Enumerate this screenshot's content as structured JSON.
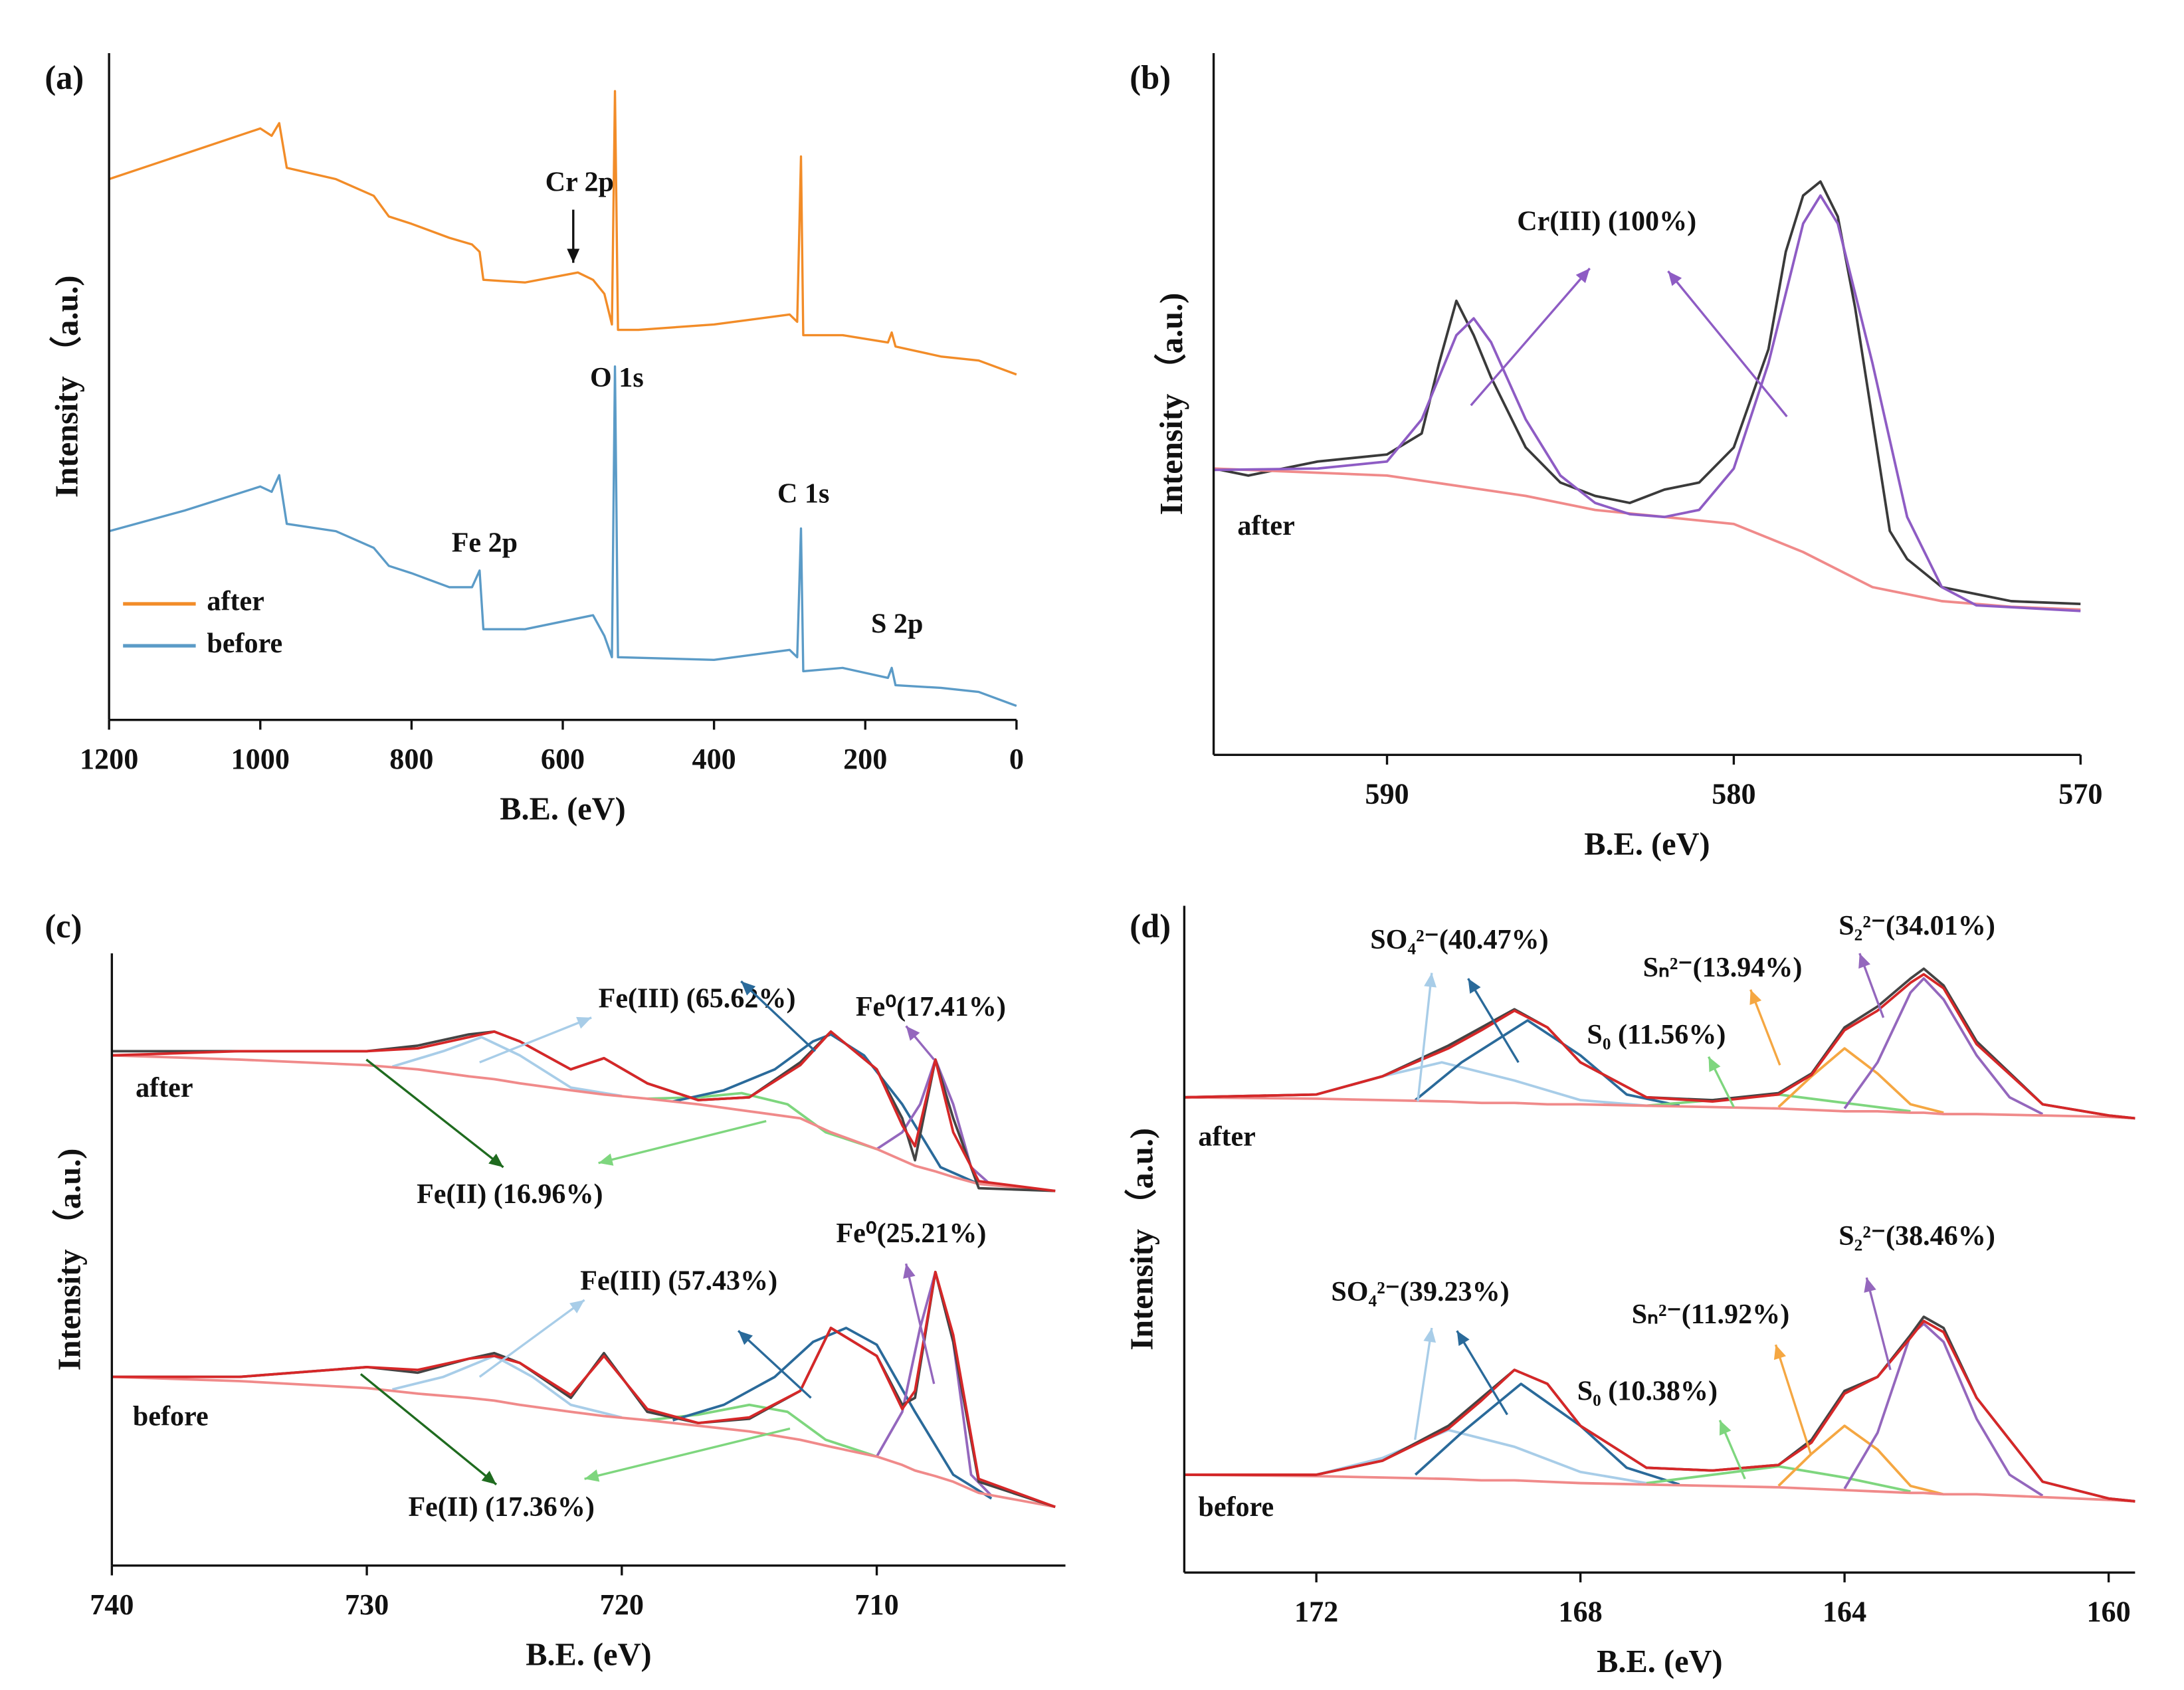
{
  "chart_data": [
    {
      "type": "line",
      "title": "(a)",
      "xlabel": "B.E. (eV)",
      "ylabel": "Intensity （a.u.)",
      "xlim": [
        1200,
        0
      ],
      "xticks": [
        1200,
        1000,
        800,
        600,
        400,
        200,
        0
      ],
      "ylim": [
        0,
        100
      ],
      "legend": "lower left",
      "series": [
        {
          "name": "after",
          "color": "#f28c28",
          "x": [
            1200,
            1100,
            1000,
            985,
            975,
            965,
            900,
            850,
            830,
            800,
            750,
            720,
            710,
            705,
            650,
            580,
            560,
            545,
            535,
            531,
            527,
            500,
            400,
            300,
            290,
            285,
            282,
            230,
            170,
            165,
            160,
            100,
            50,
            0
          ],
          "values": [
            81.1,
            84.9,
            88.7,
            87.6,
            89.5,
            82.8,
            81.1,
            78.6,
            75.5,
            74.4,
            72.3,
            71.3,
            70.2,
            66.0,
            65.6,
            67.1,
            66.0,
            63.9,
            59.3,
            94.3,
            58.5,
            58.5,
            59.3,
            60.8,
            59.7,
            84.5,
            57.7,
            57.7,
            56.6,
            58.1,
            56.0,
            54.5,
            53.9,
            51.8
          ]
        },
        {
          "name": "before",
          "color": "#5b9bc7",
          "x": [
            1200,
            1100,
            1000,
            985,
            975,
            965,
            900,
            850,
            830,
            800,
            750,
            720,
            710,
            705,
            650,
            560,
            545,
            535,
            531,
            527,
            400,
            300,
            290,
            285,
            282,
            230,
            170,
            165,
            160,
            100,
            50,
            0
          ],
          "values": [
            28.3,
            31.4,
            35.0,
            34.2,
            36.7,
            29.4,
            28.3,
            25.8,
            23.1,
            22.0,
            19.9,
            19.9,
            22.4,
            13.6,
            13.6,
            15.7,
            12.6,
            9.4,
            53.0,
            9.4,
            9.0,
            10.5,
            9.4,
            28.7,
            7.3,
            7.8,
            6.3,
            7.8,
            5.2,
            4.8,
            4.2,
            2.1
          ]
        }
      ],
      "annotations": [
        "Cr 2p",
        "O 1s",
        "Fe 2p",
        "C 1s",
        "S 2p"
      ]
    },
    {
      "type": "line",
      "title": "(b)",
      "xlabel": "B.E. (eV)",
      "ylabel": "Intensity （a.u.)",
      "xlim": [
        595,
        570
      ],
      "xticks": [
        590,
        580,
        570
      ],
      "ylim": [
        0,
        100
      ],
      "series": [
        {
          "color": "#3a3a3a",
          "x": [
            595,
            594,
            592,
            590,
            589,
            588.5,
            588,
            587.5,
            587,
            586,
            585,
            584,
            583,
            582,
            581,
            580,
            579,
            578.5,
            578,
            577.5,
            577,
            576.5,
            576,
            575.5,
            575,
            574,
            573,
            572,
            570
          ],
          "values": [
            40.8,
            39.8,
            41.8,
            42.8,
            45.8,
            55.8,
            64.7,
            59.8,
            53.8,
            43.8,
            38.8,
            36.9,
            35.9,
            37.8,
            38.8,
            43.8,
            57.8,
            71.7,
            79.7,
            81.7,
            76.7,
            63.7,
            47.8,
            31.9,
            27.9,
            23.9,
            22.9,
            21.9,
            21.5
          ]
        },
        {
          "color": "#f08a8a",
          "x": [
            595,
            590,
            586,
            584,
            582,
            580,
            578,
            576,
            574,
            572,
            570
          ],
          "values": [
            40.8,
            39.8,
            36.9,
            34.9,
            33.9,
            32.9,
            28.9,
            23.9,
            21.9,
            21.1,
            20.7
          ]
        },
        {
          "color": "#8e5cc4",
          "x": [
            595,
            592,
            590,
            589,
            588,
            587.5,
            587,
            586,
            585,
            584,
            583,
            582,
            581,
            580,
            579,
            578,
            577.5,
            577,
            576,
            575,
            574,
            573,
            570
          ],
          "values": [
            40.6,
            40.8,
            41.8,
            47.8,
            59.8,
            62.2,
            58.8,
            47.8,
            39.8,
            35.9,
            34.3,
            33.9,
            34.9,
            40.8,
            55.8,
            75.7,
            79.7,
            75.7,
            55.8,
            33.9,
            23.9,
            21.3,
            20.5
          ]
        }
      ],
      "annotations": [
        "Cr(III) (100%)",
        "after"
      ]
    },
    {
      "type": "line",
      "title": "(c)",
      "xlabel": "B.E. (eV)",
      "ylabel": "Intensity （a.u.)",
      "xlim": [
        740,
        702.6
      ],
      "xticks": [
        740,
        730,
        720,
        710
      ],
      "ylim": [
        0,
        438
      ],
      "x": [
        740,
        735,
        730,
        728,
        726,
        725,
        724,
        722,
        720.7,
        719,
        717,
        715,
        713,
        711.8,
        710,
        709,
        708.5,
        707.7,
        707,
        706,
        703
      ],
      "series": [
        {
          "color": "#a8cde8",
          "x": [
            729,
            727,
            725.5,
            724,
            722,
            720
          ],
          "values": [
            357,
            368,
            378,
            365,
            342,
            336
          ]
        },
        {
          "color": "#7ed67e",
          "x": [
            719,
            717,
            715.3,
            713.5,
            712,
            710
          ],
          "values": [
            334,
            335,
            338,
            330,
            310,
            298
          ]
        },
        {
          "color": "#2a6a9a",
          "x": [
            718,
            716,
            714,
            712.5,
            711.8,
            710.5,
            709,
            707.5,
            706
          ],
          "values": [
            332,
            340,
            355,
            375,
            380,
            365,
            330,
            285,
            273
          ]
        },
        {
          "color": "#9467bd",
          "x": [
            710,
            709,
            708.3,
            707.7,
            707,
            706.3,
            705.5
          ],
          "values": [
            298,
            310,
            330,
            362,
            330,
            285,
            272
          ]
        },
        {
          "color": "#f08a8a",
          "values": [
            365,
            362,
            358,
            355,
            350,
            348,
            345,
            340,
            337,
            334,
            330,
            325,
            320,
            310,
            298,
            290,
            286,
            282,
            278,
            273,
            268
          ]
        },
        {
          "color": "#444444",
          "values": [
            368,
            368,
            368,
            372,
            380,
            382,
            375,
            355,
            363,
            345,
            333,
            335,
            360,
            382,
            355,
            320,
            290,
            362,
            320,
            270,
            268
          ]
        },
        {
          "color": "#d62728",
          "values": [
            365,
            368,
            368,
            370,
            378,
            382,
            375,
            355,
            363,
            345,
            333,
            335,
            358,
            382,
            355,
            315,
            300,
            362,
            310,
            275,
            268
          ]
        },
        {
          "color": "#a8cde8",
          "x": [
            729,
            727,
            725,
            723.5,
            722,
            720
          ],
          "values": [
            126,
            135,
            150,
            135,
            115,
            106
          ]
        },
        {
          "color": "#7ed67e",
          "x": [
            719,
            717,
            715,
            713.5,
            712,
            710
          ],
          "values": [
            104,
            108,
            115,
            110,
            90,
            78
          ]
        },
        {
          "color": "#2a6a9a",
          "x": [
            718,
            716,
            714,
            712.5,
            711.2,
            710,
            708.5,
            707,
            705.5
          ],
          "values": [
            104,
            115,
            135,
            160,
            170,
            158,
            110,
            65,
            48
          ]
        },
        {
          "color": "#9467bd",
          "x": [
            710,
            709,
            708.3,
            707.7,
            707,
            706.3,
            705.5
          ],
          "values": [
            78,
            110,
            170,
            210,
            160,
            65,
            50
          ]
        },
        {
          "color": "#f08a8a",
          "values": [
            135,
            132,
            127,
            123,
            120,
            118,
            115,
            110,
            107,
            104,
            100,
            96,
            90,
            85,
            78,
            72,
            68,
            64,
            60,
            52,
            42
          ]
        },
        {
          "color": "#444444",
          "values": [
            135,
            135,
            142,
            138,
            148,
            152,
            145,
            120,
            152,
            110,
            102,
            105,
            125,
            170,
            150,
            115,
            120,
            210,
            160,
            60,
            42
          ]
        },
        {
          "color": "#d62728",
          "values": [
            135,
            135,
            142,
            140,
            148,
            150,
            145,
            122,
            150,
            112,
            102,
            106,
            125,
            170,
            150,
            112,
            125,
            210,
            165,
            62,
            42
          ]
        }
      ],
      "annotations": [
        "Fe(III) (65.62%)",
        "Fe⁰(17.41%)",
        "Fe(II) (16.96%)",
        "after",
        "Fe(III) (57.43%)",
        "Fe⁰(25.21%)",
        "Fe(II) (17.36%)",
        "before"
      ]
    },
    {
      "type": "line",
      "title": "(d)",
      "xlabel": "B.E. (eV)",
      "ylabel": "Intensity （a.u.)",
      "xlim": [
        174,
        159.6
      ],
      "xticks": [
        172,
        168,
        164,
        160
      ],
      "ylim": [
        0,
        477
      ],
      "x": [
        174,
        172,
        171,
        170,
        169.5,
        169,
        168.5,
        168,
        167,
        166,
        165,
        164.5,
        164,
        163.5,
        163,
        162.8,
        162.5,
        162,
        161,
        160,
        159.6
      ],
      "series": [
        {
          "color": "#a8cde8",
          "x": [
            172,
            171,
            170.1,
            169,
            168,
            167
          ],
          "values": [
            342,
            355,
            365,
            352,
            338,
            334
          ]
        },
        {
          "color": "#2a6a9a",
          "x": [
            170.5,
            169.8,
            168.8,
            168,
            167.3,
            166.5
          ],
          "values": [
            338,
            365,
            395,
            370,
            342,
            334
          ]
        },
        {
          "color": "#7ed67e",
          "x": [
            167,
            166,
            165,
            164,
            163
          ],
          "values": [
            334,
            338,
            342,
            336,
            330
          ]
        },
        {
          "color": "#f5a742",
          "x": [
            165,
            164.5,
            164,
            163.5,
            163,
            162.5
          ],
          "values": [
            333,
            355,
            375,
            357,
            335,
            329
          ]
        },
        {
          "color": "#9467bd",
          "x": [
            164,
            163.5,
            163,
            162.8,
            162.5,
            162,
            161.5,
            161
          ],
          "values": [
            332,
            365,
            415,
            425,
            410,
            370,
            340,
            328
          ]
        },
        {
          "color": "#f08a8a",
          "values": [
            340,
            339,
            338,
            337,
            336,
            336,
            335,
            335,
            334,
            333,
            332,
            331,
            330,
            330,
            329,
            329,
            328,
            328,
            327,
            326,
            325
          ]
        },
        {
          "color": "#444444",
          "values": [
            340,
            342,
            355,
            377,
            390,
            403,
            390,
            365,
            340,
            338,
            343,
            357,
            390,
            405,
            425,
            432,
            420,
            380,
            335,
            327,
            325
          ]
        },
        {
          "color": "#d62728",
          "values": [
            340,
            342,
            355,
            375,
            388,
            402,
            390,
            365,
            340,
            337,
            342,
            356,
            388,
            402,
            422,
            428,
            418,
            378,
            335,
            327,
            325
          ]
        },
        {
          "color": "#a8cde8",
          "x": [
            172,
            171,
            170,
            169,
            168,
            167
          ],
          "values": [
            70,
            82,
            102,
            90,
            72,
            64
          ]
        },
        {
          "color": "#2a6a9a",
          "x": [
            170.5,
            169.8,
            168.9,
            168,
            167.3,
            166.5
          ],
          "values": [
            70,
            100,
            135,
            105,
            75,
            63
          ]
        },
        {
          "color": "#7ed67e",
          "x": [
            167,
            166,
            165,
            164,
            163
          ],
          "values": [
            64,
            70,
            76,
            68,
            58
          ]
        },
        {
          "color": "#f5a742",
          "x": [
            165,
            164.5,
            164,
            163.5,
            163,
            162.5
          ],
          "values": [
            62,
            85,
            105,
            88,
            62,
            56
          ]
        },
        {
          "color": "#9467bd",
          "x": [
            164,
            163.5,
            163,
            162.8,
            162.5,
            162,
            161.5,
            161
          ],
          "values": [
            60,
            100,
            170,
            178,
            165,
            110,
            70,
            55
          ]
        },
        {
          "color": "#f08a8a",
          "values": [
            70,
            69,
            68,
            67,
            66,
            66,
            65,
            64,
            63,
            62,
            61,
            60,
            59,
            58,
            57,
            57,
            56,
            56,
            54,
            52,
            51
          ]
        },
        {
          "color": "#444444",
          "values": [
            70,
            70,
            80,
            105,
            125,
            145,
            135,
            105,
            75,
            73,
            77,
            95,
            130,
            140,
            170,
            183,
            175,
            125,
            65,
            53,
            51
          ]
        },
        {
          "color": "#d62728",
          "values": [
            70,
            70,
            80,
            103,
            123,
            145,
            135,
            105,
            75,
            73,
            77,
            93,
            128,
            140,
            168,
            180,
            172,
            125,
            65,
            53,
            51
          ]
        }
      ],
      "annotations": [
        "SO₄²⁻(40.47%)",
        "Sₙ²⁻(13.94%)",
        "S₀ (11.56%)",
        "S₂²⁻(34.01%)",
        "after",
        "SO₄²⁻(39.23%)",
        "Sₙ²⁻(11.92%)",
        "S₀ (10.38%)",
        "S₂²⁻(38.46%)",
        "before"
      ]
    }
  ]
}
